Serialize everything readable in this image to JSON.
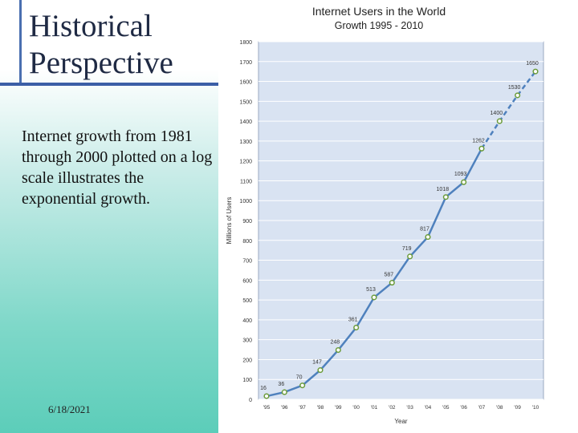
{
  "slide": {
    "title": "Historical Perspective",
    "body": "Internet growth from 1981 through 2000 plotted on a log scale illustrates the exponential growth.",
    "date": "6/18/2021"
  },
  "colors": {
    "plot_bg": "#d9e3f2",
    "line": "#4f81bd",
    "marker_fill": "#ffffff",
    "marker_stroke": "#6b9b3a",
    "title_rule": "#3b5ea6"
  },
  "chart_data": {
    "type": "line",
    "title": "Internet Users in the World",
    "subtitle": "Growth 1995 - 2010",
    "xlabel": "Year",
    "ylabel": "Millions of Users",
    "categories": [
      "'95",
      "'96",
      "'97",
      "'98",
      "'99",
      "'00",
      "'01",
      "'02",
      "'03",
      "'04",
      "'05",
      "'06",
      "'07",
      "'08",
      "'09",
      "'10"
    ],
    "values": [
      16,
      36,
      70,
      147,
      248,
      361,
      513,
      587,
      719,
      817,
      1018,
      1093,
      1262,
      1400,
      1530,
      1650
    ],
    "data_labels": [
      "16",
      "36",
      "70",
      "147",
      "248",
      "361",
      "513",
      "587",
      "719",
      "817",
      "1018",
      "1093",
      "1262",
      "1400",
      "1530",
      "1650"
    ],
    "dashed_from_index": 12,
    "ylim": [
      0,
      1800
    ],
    "yticks": [
      0,
      100,
      200,
      300,
      400,
      500,
      600,
      700,
      800,
      900,
      1000,
      1100,
      1200,
      1300,
      1400,
      1500,
      1600,
      1700,
      1800
    ],
    "grid": true,
    "legend": "none"
  }
}
